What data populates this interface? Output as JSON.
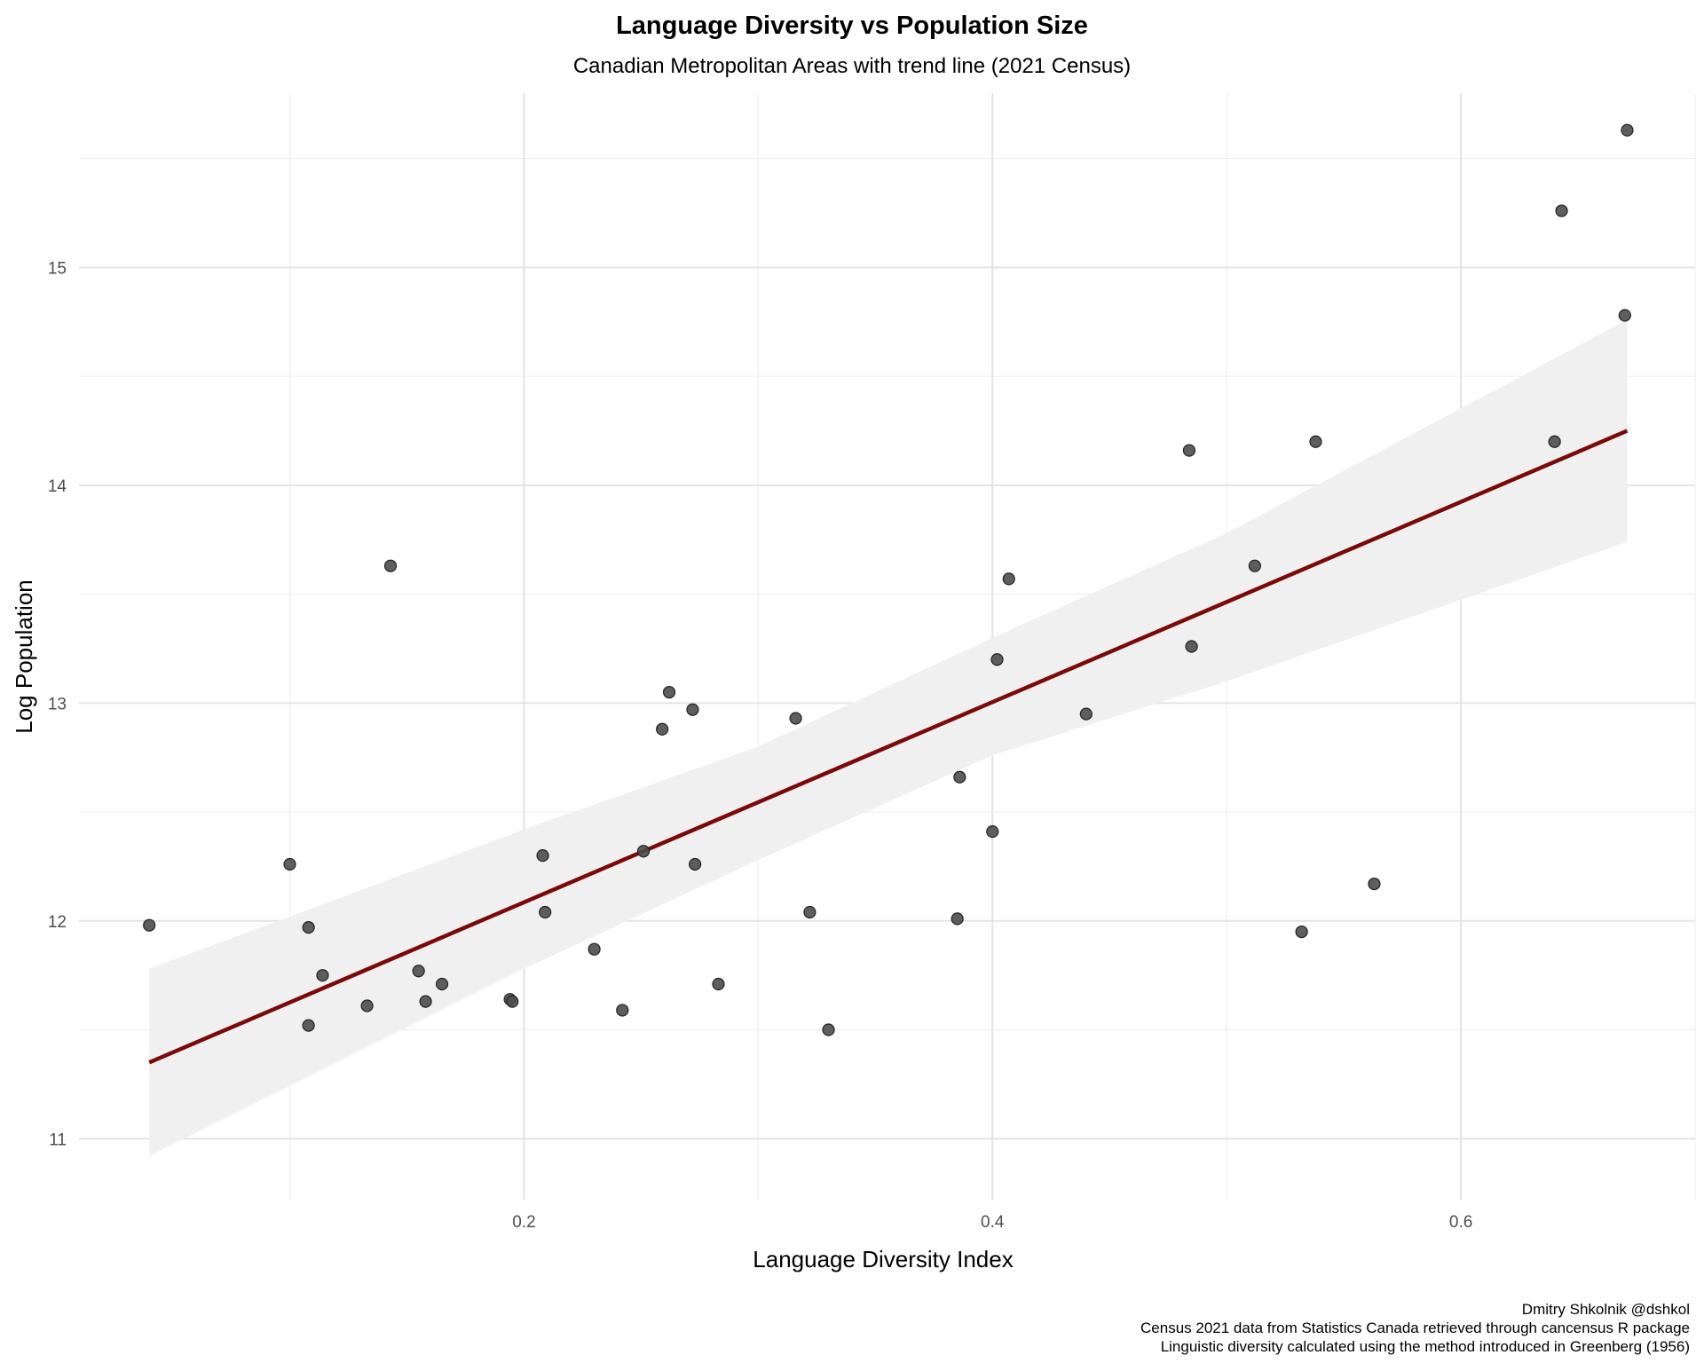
{
  "chart_data": {
    "type": "scatter",
    "title": "Language Diversity vs Population Size",
    "subtitle": "Canadian Metropolitan Areas with trend line (2021 Census)",
    "xlabel": "Language Diversity Index",
    "ylabel": "Log Population",
    "xlim": [
      0.01,
      0.7
    ],
    "ylim": [
      10.72,
      15.8
    ],
    "xticks": [
      0.2,
      0.4,
      0.6
    ],
    "xtick_labels": [
      "0.2",
      "0.4",
      "0.6"
    ],
    "yticks": [
      11,
      12,
      13,
      14,
      15
    ],
    "ytick_labels": [
      "11",
      "12",
      "13",
      "14",
      "15"
    ],
    "grid": true,
    "legend": "none",
    "point_color": "#4d4d4d",
    "trend_color": "#7a0a0a",
    "band_color": "#f0f0f0",
    "points": [
      {
        "x": 0.04,
        "y": 11.98
      },
      {
        "x": 0.1,
        "y": 12.26
      },
      {
        "x": 0.108,
        "y": 11.97
      },
      {
        "x": 0.108,
        "y": 11.52
      },
      {
        "x": 0.114,
        "y": 11.75
      },
      {
        "x": 0.133,
        "y": 11.61
      },
      {
        "x": 0.143,
        "y": 13.63
      },
      {
        "x": 0.155,
        "y": 11.77
      },
      {
        "x": 0.158,
        "y": 11.63
      },
      {
        "x": 0.165,
        "y": 11.71
      },
      {
        "x": 0.194,
        "y": 11.64
      },
      {
        "x": 0.195,
        "y": 11.63
      },
      {
        "x": 0.208,
        "y": 12.3
      },
      {
        "x": 0.209,
        "y": 12.04
      },
      {
        "x": 0.23,
        "y": 11.87
      },
      {
        "x": 0.242,
        "y": 11.59
      },
      {
        "x": 0.251,
        "y": 12.32
      },
      {
        "x": 0.259,
        "y": 12.88
      },
      {
        "x": 0.262,
        "y": 13.05
      },
      {
        "x": 0.272,
        "y": 12.97
      },
      {
        "x": 0.273,
        "y": 12.26
      },
      {
        "x": 0.283,
        "y": 11.71
      },
      {
        "x": 0.316,
        "y": 12.93
      },
      {
        "x": 0.322,
        "y": 12.04
      },
      {
        "x": 0.33,
        "y": 11.5
      },
      {
        "x": 0.385,
        "y": 12.01
      },
      {
        "x": 0.386,
        "y": 12.66
      },
      {
        "x": 0.4,
        "y": 12.41
      },
      {
        "x": 0.402,
        "y": 13.2
      },
      {
        "x": 0.407,
        "y": 13.57
      },
      {
        "x": 0.44,
        "y": 12.95
      },
      {
        "x": 0.484,
        "y": 14.16
      },
      {
        "x": 0.485,
        "y": 13.26
      },
      {
        "x": 0.512,
        "y": 13.63
      },
      {
        "x": 0.532,
        "y": 11.95
      },
      {
        "x": 0.538,
        "y": 14.2
      },
      {
        "x": 0.563,
        "y": 12.17
      },
      {
        "x": 0.64,
        "y": 14.2
      },
      {
        "x": 0.643,
        "y": 15.26
      },
      {
        "x": 0.67,
        "y": 14.78
      },
      {
        "x": 0.671,
        "y": 15.63
      }
    ],
    "trend_line": {
      "x": [
        0.04,
        0.671
      ],
      "y": [
        11.35,
        14.25
      ]
    },
    "confidence_band": {
      "x": [
        0.04,
        0.2,
        0.3,
        0.4,
        0.5,
        0.671
      ],
      "upper": [
        11.78,
        12.42,
        12.8,
        13.3,
        13.78,
        14.76
      ],
      "lower": [
        10.92,
        11.78,
        12.28,
        12.76,
        13.1,
        13.74
      ]
    }
  },
  "caption": {
    "line1": "Dmitry Shkolnik @dshkol",
    "line2": "Census 2021 data from Statistics Canada retrieved through cancensus R package",
    "line3": "Linguistic diversity calculated using the method introduced in Greenberg (1956)"
  }
}
